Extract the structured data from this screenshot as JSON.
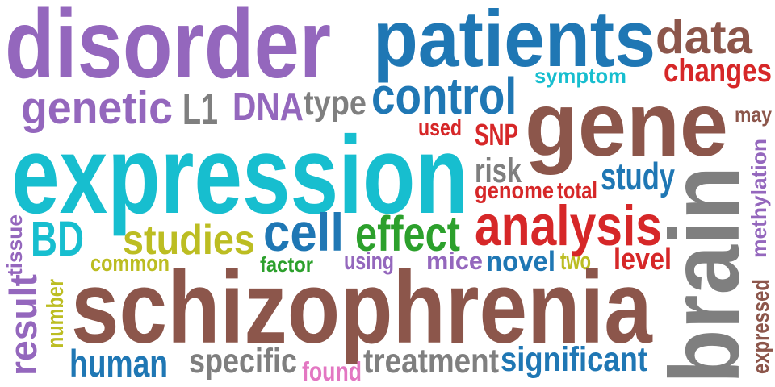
{
  "words": [
    {
      "text": "disorder",
      "color": "#9467bd",
      "rotated": false
    },
    {
      "text": "patients",
      "color": "#1f77b4",
      "rotated": false
    },
    {
      "text": "data",
      "color": "#8c564b",
      "rotated": false
    },
    {
      "text": "changes",
      "color": "#d62728",
      "rotated": false
    },
    {
      "text": "symptom",
      "color": "#17becf",
      "rotated": false
    },
    {
      "text": "genetic",
      "color": "#9467bd",
      "rotated": false
    },
    {
      "text": "L1",
      "color": "#7f7f7f",
      "rotated": false
    },
    {
      "text": "DNA",
      "color": "#9467bd",
      "rotated": false
    },
    {
      "text": "type",
      "color": "#7f7f7f",
      "rotated": false
    },
    {
      "text": "control",
      "color": "#1f77b4",
      "rotated": false
    },
    {
      "text": "gene",
      "color": "#8c564b",
      "rotated": false
    },
    {
      "text": "may",
      "color": "#8c564b",
      "rotated": false
    },
    {
      "text": "used",
      "color": "#d62728",
      "rotated": false
    },
    {
      "text": "SNP",
      "color": "#d62728",
      "rotated": false
    },
    {
      "text": "expression",
      "color": "#17becf",
      "rotated": false
    },
    {
      "text": "risk",
      "color": "#7f7f7f",
      "rotated": false
    },
    {
      "text": "study",
      "color": "#1f77b4",
      "rotated": false
    },
    {
      "text": "genome",
      "color": "#d62728",
      "rotated": false
    },
    {
      "text": "total",
      "color": "#d62728",
      "rotated": false
    },
    {
      "text": "methylation",
      "color": "#9467bd",
      "rotated": true
    },
    {
      "text": "tissue",
      "color": "#9467bd",
      "rotated": true
    },
    {
      "text": "BD",
      "color": "#17becf",
      "rotated": false
    },
    {
      "text": "studies",
      "color": "#bcbd22",
      "rotated": false
    },
    {
      "text": "cell",
      "color": "#1f77b4",
      "rotated": false
    },
    {
      "text": "effect",
      "color": "#2ca02c",
      "rotated": false
    },
    {
      "text": "analysis",
      "color": "#d62728",
      "rotated": false
    },
    {
      "text": "brain",
      "color": "#7f7f7f",
      "rotated": true
    },
    {
      "text": "common",
      "color": "#bcbd22",
      "rotated": false
    },
    {
      "text": "factor",
      "color": "#2ca02c",
      "rotated": false
    },
    {
      "text": "using",
      "color": "#9467bd",
      "rotated": false
    },
    {
      "text": "mice",
      "color": "#9467bd",
      "rotated": false
    },
    {
      "text": "novel",
      "color": "#1f77b4",
      "rotated": false
    },
    {
      "text": "two",
      "color": "#bcbd22",
      "rotated": false
    },
    {
      "text": "level",
      "color": "#d62728",
      "rotated": false
    },
    {
      "text": "result",
      "color": "#9467bd",
      "rotated": true
    },
    {
      "text": "number",
      "color": "#bcbd22",
      "rotated": true
    },
    {
      "text": "schizophrenia",
      "color": "#8c564b",
      "rotated": false
    },
    {
      "text": "expressed",
      "color": "#8c564b",
      "rotated": true
    },
    {
      "text": "human",
      "color": "#1f77b4",
      "rotated": false
    },
    {
      "text": "specific",
      "color": "#7f7f7f",
      "rotated": false
    },
    {
      "text": "found",
      "color": "#e377c2",
      "rotated": false
    },
    {
      "text": "treatment",
      "color": "#7f7f7f",
      "rotated": false
    },
    {
      "text": "significant",
      "color": "#1f77b4",
      "rotated": false
    }
  ]
}
